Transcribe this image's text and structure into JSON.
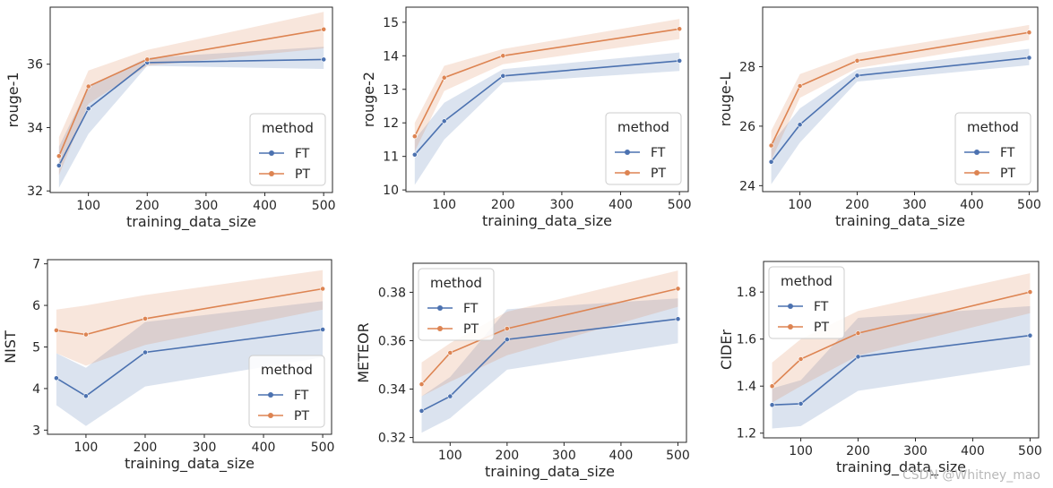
{
  "watermark": "CSDN @Whitney_mao",
  "chart_data": [
    {
      "type": "line",
      "xlabel": "training_data_size",
      "ylabel": "rouge-1",
      "x": [
        50,
        100,
        200,
        500
      ],
      "xticks": [
        100,
        200,
        300,
        400,
        500
      ],
      "xlim": [
        35,
        515
      ],
      "ylim": [
        31.95,
        37.8
      ],
      "yticks": [
        32,
        34,
        36
      ],
      "series": [
        {
          "name": "FT",
          "color": "#4c72b0",
          "values": [
            32.8,
            34.6,
            36.05,
            36.15
          ],
          "ci_low": [
            32.1,
            33.8,
            35.95,
            35.85
          ],
          "ci_high": [
            33.4,
            35.3,
            36.2,
            36.55
          ]
        },
        {
          "name": "PT",
          "color": "#dd8452",
          "values": [
            33.1,
            35.3,
            36.15,
            37.1
          ],
          "ci_low": [
            32.5,
            34.75,
            35.95,
            36.5
          ],
          "ci_high": [
            33.7,
            35.8,
            36.45,
            37.65
          ]
        }
      ],
      "legend": {
        "title": "method",
        "loc": "lower right"
      }
    },
    {
      "type": "line",
      "xlabel": "training_data_size",
      "ylabel": "rouge-2",
      "x": [
        50,
        100,
        200,
        500
      ],
      "xticks": [
        100,
        200,
        300,
        400,
        500
      ],
      "xlim": [
        35,
        515
      ],
      "ylim": [
        9.95,
        15.45
      ],
      "yticks": [
        10,
        11,
        12,
        13,
        14,
        15
      ],
      "series": [
        {
          "name": "FT",
          "color": "#4c72b0",
          "values": [
            11.05,
            12.05,
            13.4,
            13.85
          ],
          "ci_low": [
            10.15,
            11.5,
            13.2,
            13.55
          ],
          "ci_high": [
            11.5,
            12.6,
            13.6,
            14.1
          ]
        },
        {
          "name": "PT",
          "color": "#dd8452",
          "values": [
            11.6,
            13.35,
            14.0,
            14.8
          ],
          "ci_low": [
            11.15,
            12.95,
            13.75,
            14.5
          ],
          "ci_high": [
            12.0,
            13.7,
            14.2,
            15.1
          ]
        }
      ],
      "legend": {
        "title": "method",
        "loc": "lower right"
      }
    },
    {
      "type": "line",
      "xlabel": "training_data_size",
      "ylabel": "rouge-L",
      "x": [
        50,
        100,
        200,
        500
      ],
      "xticks": [
        100,
        200,
        300,
        400,
        500
      ],
      "xlim": [
        35,
        515
      ],
      "ylim": [
        23.8,
        30.0
      ],
      "yticks": [
        24,
        26,
        28
      ],
      "series": [
        {
          "name": "FT",
          "color": "#4c72b0",
          "values": [
            24.8,
            26.05,
            27.7,
            28.3
          ],
          "ci_low": [
            24.05,
            25.45,
            27.5,
            28.05
          ],
          "ci_high": [
            25.4,
            26.6,
            27.9,
            28.6
          ]
        },
        {
          "name": "PT",
          "color": "#dd8452",
          "values": [
            25.35,
            27.35,
            28.2,
            29.15
          ],
          "ci_low": [
            24.85,
            26.95,
            27.95,
            28.9
          ],
          "ci_high": [
            25.85,
            27.75,
            28.45,
            29.4
          ]
        }
      ],
      "legend": {
        "title": "method",
        "loc": "lower right"
      }
    },
    {
      "type": "line",
      "xlabel": "training_data_size",
      "ylabel": "NIST",
      "x": [
        50,
        100,
        200,
        500
      ],
      "xticks": [
        100,
        200,
        300,
        400,
        500
      ],
      "xlim": [
        35,
        515
      ],
      "ylim": [
        2.9,
        7.1
      ],
      "yticks": [
        3,
        4,
        5,
        6,
        7
      ],
      "series": [
        {
          "name": "FT",
          "color": "#4c72b0",
          "values": [
            4.25,
            3.82,
            4.87,
            5.42
          ],
          "ci_low": [
            3.6,
            3.1,
            4.05,
            4.75
          ],
          "ci_high": [
            4.85,
            4.5,
            5.6,
            6.1
          ]
        },
        {
          "name": "PT",
          "color": "#dd8452",
          "values": [
            5.4,
            5.3,
            5.68,
            6.4
          ],
          "ci_low": [
            4.85,
            4.55,
            5.05,
            5.9
          ],
          "ci_high": [
            5.9,
            6.0,
            6.25,
            6.85
          ]
        }
      ],
      "legend": {
        "title": "method",
        "loc": "lower right"
      }
    },
    {
      "type": "line",
      "xlabel": "training_data_size",
      "ylabel": "METEOR",
      "x": [
        50,
        100,
        200,
        500
      ],
      "xticks": [
        100,
        200,
        300,
        400,
        500
      ],
      "xlim": [
        35,
        515
      ],
      "ylim": [
        0.318,
        0.392
      ],
      "yticks": [
        0.32,
        0.34,
        0.36,
        0.38
      ],
      "series": [
        {
          "name": "FT",
          "color": "#4c72b0",
          "values": [
            0.331,
            0.337,
            0.3605,
            0.369
          ],
          "ci_low": [
            0.322,
            0.328,
            0.348,
            0.359
          ],
          "ci_high": [
            0.337,
            0.345,
            0.373,
            0.3775
          ]
        },
        {
          "name": "PT",
          "color": "#dd8452",
          "values": [
            0.342,
            0.355,
            0.365,
            0.3815
          ],
          "ci_low": [
            0.337,
            0.343,
            0.354,
            0.374
          ],
          "ci_high": [
            0.351,
            0.359,
            0.372,
            0.389
          ]
        }
      ],
      "legend": {
        "title": "method",
        "loc": "upper left"
      }
    },
    {
      "type": "line",
      "xlabel": "training_data_size",
      "ylabel": "CIDEr",
      "x": [
        50,
        100,
        200,
        500
      ],
      "xticks": [
        100,
        200,
        300,
        400,
        500
      ],
      "xlim": [
        35,
        515
      ],
      "ylim": [
        1.18,
        1.93
      ],
      "yticks": [
        1.2,
        1.4,
        1.6,
        1.8
      ],
      "series": [
        {
          "name": "FT",
          "color": "#4c72b0",
          "values": [
            1.32,
            1.325,
            1.525,
            1.615
          ],
          "ci_low": [
            1.22,
            1.23,
            1.38,
            1.49
          ],
          "ci_high": [
            1.39,
            1.425,
            1.69,
            1.74
          ]
        },
        {
          "name": "PT",
          "color": "#dd8452",
          "values": [
            1.4,
            1.515,
            1.625,
            1.8
          ],
          "ci_low": [
            1.33,
            1.4,
            1.53,
            1.71
          ],
          "ci_high": [
            1.5,
            1.6,
            1.72,
            1.88
          ]
        }
      ],
      "legend": {
        "title": "method",
        "loc": "upper left"
      }
    }
  ]
}
